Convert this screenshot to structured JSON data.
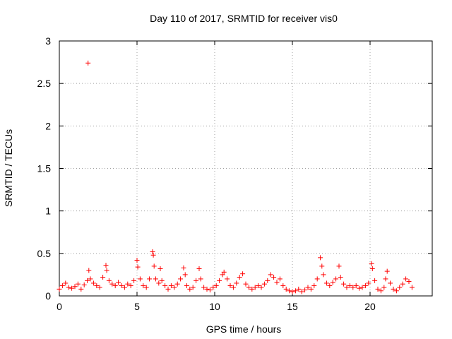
{
  "chart_data": {
    "type": "scatter",
    "title": "Day 110 of 2017, SRMTID for receiver vis0",
    "xlabel": "GPS time / hours",
    "ylabel": "SRMTID / TECUs",
    "xlim": [
      0,
      24
    ],
    "ylim": [
      0,
      3
    ],
    "xticks": [
      0,
      5,
      10,
      15,
      20
    ],
    "yticks": [
      0,
      0.5,
      1,
      1.5,
      2,
      2.5,
      3
    ],
    "xtick_labels": [
      "0",
      "5",
      "10",
      "15",
      "20"
    ],
    "ytick_labels": [
      "0",
      "0.5",
      "1",
      "1.5",
      "2",
      "2.5",
      "3"
    ],
    "grid": true,
    "marker": "plus",
    "series": [
      {
        "name": "vis0",
        "color": "#ff0000",
        "points": [
          [
            0.0,
            0.08
          ],
          [
            0.2,
            0.12
          ],
          [
            0.4,
            0.15
          ],
          [
            0.6,
            0.1
          ],
          [
            0.8,
            0.09
          ],
          [
            1.0,
            0.11
          ],
          [
            1.2,
            0.14
          ],
          [
            1.4,
            0.08
          ],
          [
            1.6,
            0.13
          ],
          [
            1.8,
            0.18
          ],
          [
            1.85,
            2.74
          ],
          [
            1.9,
            0.3
          ],
          [
            2.0,
            0.2
          ],
          [
            2.2,
            0.15
          ],
          [
            2.4,
            0.12
          ],
          [
            2.6,
            0.1
          ],
          [
            2.8,
            0.22
          ],
          [
            3.0,
            0.36
          ],
          [
            3.05,
            0.3
          ],
          [
            3.2,
            0.18
          ],
          [
            3.4,
            0.14
          ],
          [
            3.6,
            0.12
          ],
          [
            3.8,
            0.16
          ],
          [
            4.0,
            0.12
          ],
          [
            4.2,
            0.1
          ],
          [
            4.4,
            0.14
          ],
          [
            4.6,
            0.12
          ],
          [
            4.8,
            0.18
          ],
          [
            5.0,
            0.42
          ],
          [
            5.05,
            0.34
          ],
          [
            5.2,
            0.2
          ],
          [
            5.4,
            0.12
          ],
          [
            5.6,
            0.1
          ],
          [
            5.8,
            0.2
          ],
          [
            6.0,
            0.52
          ],
          [
            6.05,
            0.48
          ],
          [
            6.1,
            0.35
          ],
          [
            6.2,
            0.2
          ],
          [
            6.4,
            0.15
          ],
          [
            6.5,
            0.32
          ],
          [
            6.6,
            0.18
          ],
          [
            6.8,
            0.12
          ],
          [
            7.0,
            0.08
          ],
          [
            7.2,
            0.12
          ],
          [
            7.4,
            0.1
          ],
          [
            7.6,
            0.14
          ],
          [
            7.8,
            0.2
          ],
          [
            8.0,
            0.33
          ],
          [
            8.1,
            0.25
          ],
          [
            8.2,
            0.12
          ],
          [
            8.4,
            0.08
          ],
          [
            8.6,
            0.1
          ],
          [
            8.8,
            0.18
          ],
          [
            9.0,
            0.32
          ],
          [
            9.1,
            0.2
          ],
          [
            9.3,
            0.1
          ],
          [
            9.5,
            0.08
          ],
          [
            9.7,
            0.07
          ],
          [
            9.9,
            0.1
          ],
          [
            10.1,
            0.12
          ],
          [
            10.3,
            0.18
          ],
          [
            10.5,
            0.25
          ],
          [
            10.6,
            0.28
          ],
          [
            10.8,
            0.2
          ],
          [
            11.0,
            0.12
          ],
          [
            11.2,
            0.1
          ],
          [
            11.4,
            0.15
          ],
          [
            11.6,
            0.22
          ],
          [
            11.8,
            0.26
          ],
          [
            12.0,
            0.14
          ],
          [
            12.2,
            0.1
          ],
          [
            12.4,
            0.08
          ],
          [
            12.6,
            0.1
          ],
          [
            12.8,
            0.12
          ],
          [
            13.0,
            0.1
          ],
          [
            13.2,
            0.14
          ],
          [
            13.4,
            0.18
          ],
          [
            13.6,
            0.25
          ],
          [
            13.8,
            0.22
          ],
          [
            14.0,
            0.16
          ],
          [
            14.2,
            0.2
          ],
          [
            14.4,
            0.12
          ],
          [
            14.6,
            0.08
          ],
          [
            14.8,
            0.06
          ],
          [
            15.0,
            0.05
          ],
          [
            15.2,
            0.06
          ],
          [
            15.4,
            0.08
          ],
          [
            15.6,
            0.05
          ],
          [
            15.8,
            0.07
          ],
          [
            16.0,
            0.1
          ],
          [
            16.2,
            0.08
          ],
          [
            16.4,
            0.12
          ],
          [
            16.6,
            0.2
          ],
          [
            16.8,
            0.45
          ],
          [
            16.9,
            0.35
          ],
          [
            17.0,
            0.25
          ],
          [
            17.2,
            0.15
          ],
          [
            17.4,
            0.12
          ],
          [
            17.6,
            0.16
          ],
          [
            17.8,
            0.2
          ],
          [
            18.0,
            0.35
          ],
          [
            18.1,
            0.22
          ],
          [
            18.3,
            0.14
          ],
          [
            18.5,
            0.1
          ],
          [
            18.7,
            0.12
          ],
          [
            18.9,
            0.1
          ],
          [
            19.1,
            0.12
          ],
          [
            19.3,
            0.09
          ],
          [
            19.5,
            0.1
          ],
          [
            19.7,
            0.12
          ],
          [
            19.9,
            0.15
          ],
          [
            20.1,
            0.38
          ],
          [
            20.15,
            0.32
          ],
          [
            20.3,
            0.18
          ],
          [
            20.5,
            0.08
          ],
          [
            20.7,
            0.06
          ],
          [
            20.9,
            0.1
          ],
          [
            21.0,
            0.2
          ],
          [
            21.1,
            0.29
          ],
          [
            21.3,
            0.15
          ],
          [
            21.5,
            0.08
          ],
          [
            21.7,
            0.06
          ],
          [
            21.9,
            0.1
          ],
          [
            22.1,
            0.14
          ],
          [
            22.3,
            0.2
          ],
          [
            22.5,
            0.17
          ],
          [
            22.7,
            0.1
          ]
        ]
      }
    ]
  }
}
